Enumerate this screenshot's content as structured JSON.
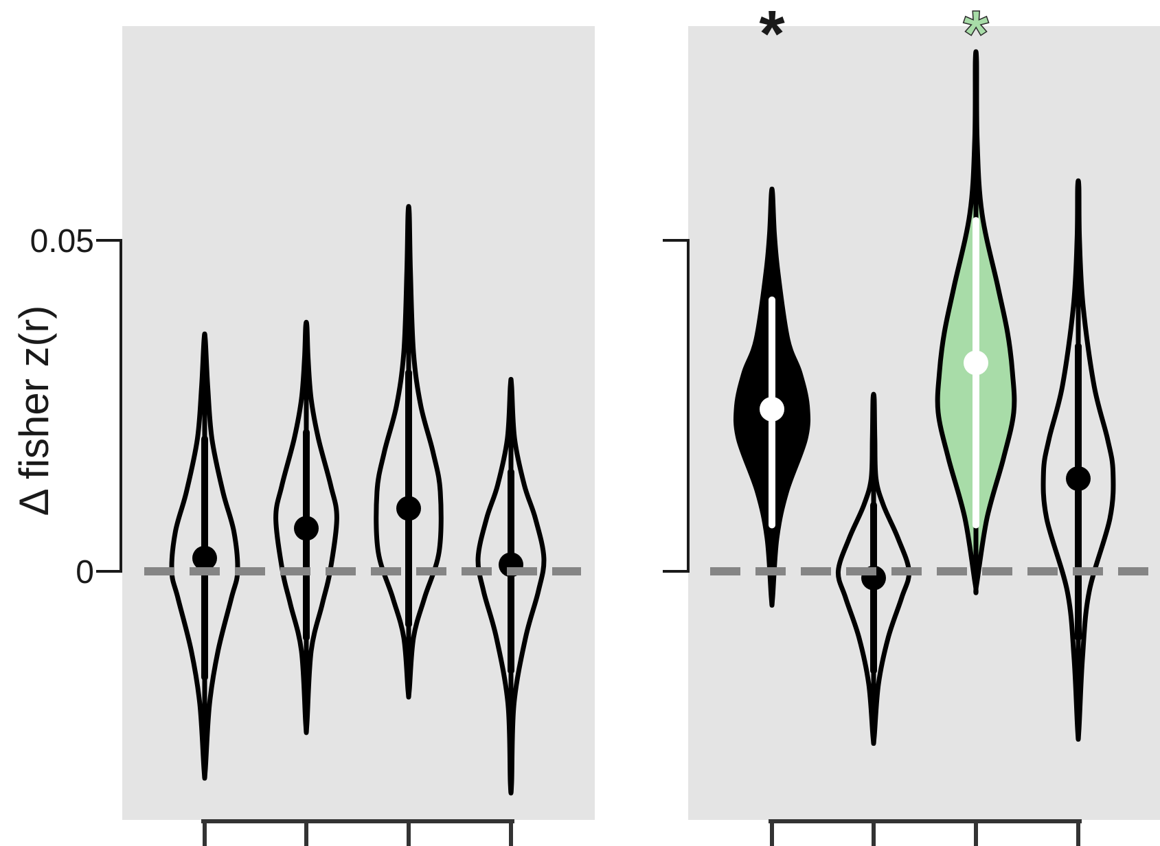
{
  "figure": {
    "ylabel": "Δ fisher z(r)"
  },
  "chart_data": [
    {
      "type": "violin",
      "panel": "left",
      "yticks": [
        0,
        0.05
      ],
      "ytick_labels": [
        "0",
        "0.05"
      ],
      "ylim": [
        -0.037,
        0.083
      ],
      "reference_line": 0,
      "grid": false,
      "violins": [
        {
          "median": 0.002,
          "range": [
            -0.03,
            0.035
          ],
          "whisker": [
            -0.016,
            0.02
          ],
          "filled": false,
          "significant": false,
          "density": [
            [
              -0.03,
              0.001
            ],
            [
              -0.02,
              0.008
            ],
            [
              -0.012,
              0.022
            ],
            [
              -0.004,
              0.044
            ],
            [
              0.0,
              0.054
            ],
            [
              0.006,
              0.048
            ],
            [
              0.012,
              0.03
            ],
            [
              0.02,
              0.012
            ],
            [
              0.028,
              0.005
            ],
            [
              0.035,
              0.001
            ]
          ]
        },
        {
          "median": 0.0065,
          "range": [
            -0.023,
            0.037
          ],
          "whisker": [
            -0.01,
            0.021
          ],
          "filled": false,
          "significant": false,
          "density": [
            [
              -0.023,
              0.001
            ],
            [
              -0.012,
              0.008
            ],
            [
              -0.005,
              0.026
            ],
            [
              0.0,
              0.039
            ],
            [
              0.008,
              0.05
            ],
            [
              0.013,
              0.04
            ],
            [
              0.02,
              0.02
            ],
            [
              0.026,
              0.008
            ],
            [
              0.032,
              0.003
            ],
            [
              0.037,
              0.001
            ]
          ]
        },
        {
          "median": 0.0095,
          "range": [
            -0.018,
            0.054
          ],
          "whisker": [
            -0.008,
            0.03
          ],
          "filled": false,
          "significant": false,
          "density": [
            [
              -0.018,
              0.001
            ],
            [
              -0.01,
              0.008
            ],
            [
              -0.004,
              0.026
            ],
            [
              0.003,
              0.05
            ],
            [
              0.012,
              0.052
            ],
            [
              0.018,
              0.04
            ],
            [
              0.025,
              0.02
            ],
            [
              0.033,
              0.008
            ],
            [
              0.045,
              0.003
            ],
            [
              0.054,
              0.001
            ]
          ]
        },
        {
          "median": 0.001,
          "range": [
            -0.032,
            0.028
          ],
          "whisker": [
            -0.015,
            0.015
          ],
          "filled": false,
          "significant": false,
          "density": [
            [
              -0.032,
              0.001
            ],
            [
              -0.02,
              0.005
            ],
            [
              -0.01,
              0.024
            ],
            [
              -0.003,
              0.045
            ],
            [
              0.002,
              0.054
            ],
            [
              0.008,
              0.04
            ],
            [
              0.013,
              0.022
            ],
            [
              0.02,
              0.006
            ],
            [
              0.028,
              0.001
            ]
          ]
        }
      ]
    },
    {
      "type": "violin",
      "panel": "right",
      "yticks": [
        0,
        0.05
      ],
      "ytick_labels": [
        "",
        ""
      ],
      "ylim": [
        -0.037,
        0.083
      ],
      "reference_line": 0,
      "grid": false,
      "violins": [
        {
          "median": 0.0245,
          "range": [
            -0.004,
            0.057
          ],
          "whisker": [
            0.007,
            0.041
          ],
          "filled": true,
          "fill_color": "#000000",
          "marker_color": "#ffffff",
          "significant": true,
          "star_color": "#1a1a1a",
          "density": [
            [
              -0.004,
              0.001
            ],
            [
              0.005,
              0.008
            ],
            [
              0.012,
              0.024
            ],
            [
              0.02,
              0.055
            ],
            [
              0.025,
              0.058
            ],
            [
              0.03,
              0.046
            ],
            [
              0.035,
              0.026
            ],
            [
              0.045,
              0.01
            ],
            [
              0.051,
              0.004
            ],
            [
              0.057,
              0.001
            ]
          ]
        },
        {
          "median": -0.001,
          "range": [
            -0.025,
            0.026
          ],
          "whisker": [
            -0.015,
            0.01
          ],
          "filled": false,
          "significant": false,
          "density": [
            [
              -0.025,
              0.001
            ],
            [
              -0.017,
              0.008
            ],
            [
              -0.01,
              0.024
            ],
            [
              -0.004,
              0.046
            ],
            [
              0.0,
              0.058
            ],
            [
              0.005,
              0.04
            ],
            [
              0.01,
              0.016
            ],
            [
              0.014,
              0.004
            ],
            [
              0.02,
              0.002
            ],
            [
              0.026,
              0.001
            ]
          ]
        },
        {
          "median": 0.0315,
          "range": [
            -0.002,
            0.077
          ],
          "whisker": [
            0.007,
            0.053
          ],
          "filled": true,
          "fill_color": "#a8dca8",
          "marker_color": "#ffffff",
          "significant": true,
          "star_color": "#a8dca8",
          "density": [
            [
              -0.002,
              0.001
            ],
            [
              0.008,
              0.018
            ],
            [
              0.017,
              0.045
            ],
            [
              0.024,
              0.062
            ],
            [
              0.03,
              0.06
            ],
            [
              0.036,
              0.052
            ],
            [
              0.043,
              0.036
            ],
            [
              0.054,
              0.01
            ],
            [
              0.065,
              0.002
            ],
            [
              0.077,
              0.001
            ]
          ]
        },
        {
          "median": 0.014,
          "range": [
            -0.024,
            0.058
          ],
          "whisker": [
            -0.01,
            0.034
          ],
          "filled": false,
          "significant": false,
          "density": [
            [
              -0.024,
              0.001
            ],
            [
              -0.013,
              0.007
            ],
            [
              -0.003,
              0.018
            ],
            [
              0.008,
              0.052
            ],
            [
              0.015,
              0.057
            ],
            [
              0.02,
              0.048
            ],
            [
              0.028,
              0.026
            ],
            [
              0.04,
              0.008
            ],
            [
              0.05,
              0.002
            ],
            [
              0.058,
              0.001
            ]
          ]
        }
      ]
    }
  ]
}
